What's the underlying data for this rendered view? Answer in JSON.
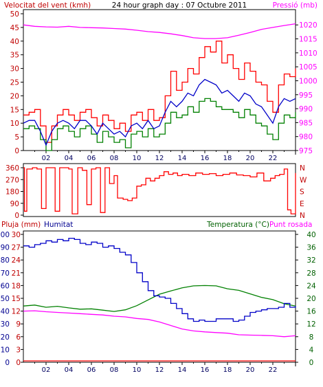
{
  "colors": {
    "wind": "#ff0000",
    "pressure": "#ff00ff",
    "humidity": "#0000c8",
    "temperature": "#008000",
    "dewpoint": "#ff00ff",
    "rain": "#ff0000",
    "label_red": "#c00000",
    "label_blue": "#000090",
    "label_green": "#006000",
    "axis": "#000000"
  },
  "chart_data": [
    {
      "type": "line",
      "title": "24 hour graph day : 07 Octubre 2011",
      "left_axis_label": "Velocitat del vent (kmh)",
      "right_axis_label": "Pressió (mb)",
      "left_ticks": [
        "0",
        "5",
        "10",
        "15",
        "20",
        "25",
        "30",
        "35",
        "40",
        "45",
        "50"
      ],
      "right_ticks": [
        "975",
        "980",
        "985",
        "990",
        "995",
        "1000",
        "1005",
        "1010",
        "1015",
        "1020"
      ],
      "x_ticks": [
        "02",
        "04",
        "06",
        "08",
        "10",
        "12",
        "14",
        "16",
        "18",
        "20",
        "22"
      ],
      "ylim_left": [
        0,
        50
      ],
      "ylim_right": [
        975,
        1024
      ],
      "x_range_hours": [
        0,
        24
      ],
      "series": [
        {
          "key": "gust",
          "x": [
            0,
            0.5,
            1,
            1.5,
            2,
            2.5,
            3,
            3.5,
            4,
            4.5,
            5,
            5.5,
            6,
            6.5,
            7,
            7.5,
            8,
            8.5,
            9,
            9.5,
            10,
            10.5,
            11,
            11.5,
            12,
            12.5,
            13,
            13.5,
            14,
            14.5,
            15,
            15.5,
            16,
            16.5,
            17,
            17.5,
            18,
            18.5,
            19,
            19.5,
            20,
            20.5,
            21,
            21.5,
            22,
            22.5,
            23,
            23.5,
            24
          ],
          "values": [
            13,
            14,
            15,
            9,
            3,
            9,
            13,
            15,
            13,
            11,
            14,
            15,
            12,
            9,
            13,
            11,
            8,
            10,
            7,
            13,
            14,
            11,
            15,
            11,
            12,
            20,
            29,
            22,
            25,
            30,
            28,
            34,
            38,
            36,
            40,
            32,
            35,
            30,
            26,
            32,
            29,
            25,
            24,
            18,
            14,
            24,
            28,
            27,
            30
          ]
        },
        {
          "key": "wind_avg",
          "x": [
            0,
            0.5,
            1,
            1.5,
            2,
            2.5,
            3,
            3.5,
            4,
            4.5,
            5,
            5.5,
            6,
            6.5,
            7,
            7.5,
            8,
            8.5,
            9,
            9.5,
            10,
            10.5,
            11,
            11.5,
            12,
            12.5,
            13,
            13.5,
            14,
            14.5,
            15,
            15.5,
            16,
            16.5,
            17,
            17.5,
            18,
            18.5,
            19,
            19.5,
            20,
            20.5,
            21,
            21.5,
            22,
            22.5,
            23,
            23.5,
            24
          ],
          "values": [
            10,
            11,
            11,
            7,
            2,
            7,
            10,
            11,
            10,
            8,
            11,
            11,
            9,
            6,
            10,
            8,
            6,
            7,
            5,
            9,
            10,
            8,
            11,
            8,
            9,
            14,
            18,
            16,
            18,
            21,
            20,
            24,
            26,
            25,
            24,
            21,
            22,
            20,
            18,
            21,
            20,
            17,
            16,
            13,
            10,
            16,
            19,
            18,
            19
          ]
        },
        {
          "key": "wind_min",
          "x": [
            0,
            0.5,
            1,
            1.5,
            2,
            2.5,
            3,
            3.5,
            4,
            4.5,
            5,
            5.5,
            6,
            6.5,
            7,
            7.5,
            8,
            8.5,
            9,
            9.5,
            10,
            10.5,
            11,
            11.5,
            12,
            12.5,
            13,
            13.5,
            14,
            14.5,
            15,
            15.5,
            16,
            16.5,
            17,
            17.5,
            18,
            18.5,
            19,
            19.5,
            20,
            20.5,
            21,
            21.5,
            22,
            22.5,
            23,
            23.5,
            24
          ],
          "values": [
            8,
            9,
            8,
            4,
            0,
            4,
            8,
            9,
            7,
            5,
            8,
            9,
            6,
            3,
            7,
            5,
            3,
            4,
            1,
            6,
            7,
            5,
            8,
            5,
            6,
            10,
            14,
            12,
            13,
            16,
            14,
            18,
            19,
            18,
            16,
            15,
            15,
            14,
            12,
            15,
            13,
            10,
            9,
            6,
            4,
            10,
            13,
            12,
            14
          ]
        },
        {
          "key": "pressure",
          "axis": "right",
          "x": [
            0,
            1,
            2,
            3,
            4,
            5,
            6,
            7,
            8,
            9,
            10,
            11,
            12,
            13,
            14,
            15,
            16,
            17,
            18,
            19,
            20,
            21,
            22,
            23,
            24
          ],
          "values": [
            1020,
            1019.5,
            1019.3,
            1019.2,
            1019.5,
            1019.1,
            1019,
            1018.9,
            1018.7,
            1018.5,
            1018.1,
            1017.6,
            1017.3,
            1016.8,
            1016.2,
            1015.4,
            1015.1,
            1015.1,
            1015.4,
            1016.3,
            1017.3,
            1018.4,
            1019.1,
            1019.8,
            1020.4
          ]
        }
      ]
    },
    {
      "type": "line",
      "left_ticks": [
        "0",
        "90",
        "180",
        "270",
        "360"
      ],
      "right_ticks": [
        "N",
        "W",
        "S",
        "E",
        "N"
      ],
      "ylim": [
        0,
        360
      ],
      "x_range_hours": [
        0,
        24
      ],
      "series": [
        {
          "key": "direction",
          "x": [
            0,
            0.1,
            0.3,
            0.8,
            1.2,
            1.6,
            2,
            2.4,
            2.8,
            3.2,
            3.6,
            4,
            4.3,
            4.8,
            5.2,
            5.6,
            6,
            6.4,
            6.8,
            7.2,
            7.6,
            8,
            8.3,
            8.8,
            9.2,
            9.6,
            10,
            10.4,
            10.8,
            11.2,
            11.6,
            12,
            12.4,
            12.8,
            13.2,
            13.6,
            14,
            14.6,
            15.2,
            15.8,
            16.4,
            17,
            17.6,
            18.2,
            18.8,
            19.4,
            20,
            20.6,
            21.2,
            21.8,
            22.2,
            22.6,
            23,
            23.3,
            23.6,
            24
          ],
          "values": [
            360,
            30,
            350,
            360,
            350,
            50,
            360,
            360,
            30,
            360,
            360,
            350,
            10,
            360,
            340,
            80,
            350,
            360,
            20,
            360,
            240,
            300,
            130,
            120,
            110,
            130,
            220,
            230,
            280,
            260,
            280,
            300,
            330,
            310,
            320,
            300,
            310,
            300,
            320,
            310,
            315,
            300,
            310,
            320,
            305,
            300,
            290,
            320,
            260,
            280,
            300,
            310,
            350,
            40,
            10,
            320
          ]
        }
      ]
    },
    {
      "type": "line",
      "left_axis_label": "Pluja (mm)",
      "left_axis_label2": "Humitat",
      "right_axis_label": "Temperatura (°C)",
      "right_axis_label2": "Punt rosada",
      "rain_ticks": [
        "0",
        "3",
        "6",
        "9",
        "12",
        "15",
        "18",
        "21",
        "24",
        "27",
        "30"
      ],
      "humidity_ticks": [
        "0",
        "10",
        "20",
        "30",
        "40",
        "50",
        "60",
        "70",
        "80",
        "90",
        "100"
      ],
      "right_ticks": [
        "0",
        "4",
        "8",
        "12",
        "16",
        "20",
        "24",
        "28",
        "32",
        "36",
        "40"
      ],
      "x_ticks": [
        "02",
        "04",
        "06",
        "08",
        "10",
        "12",
        "14",
        "16",
        "18",
        "20",
        "22"
      ],
      "ylim_humidity": [
        0,
        100
      ],
      "ylim_temperature": [
        0,
        40
      ],
      "x_range_hours": [
        0,
        24
      ],
      "series": [
        {
          "key": "humidity",
          "x": [
            0,
            0.5,
            1,
            1.5,
            2,
            2.5,
            3,
            3.5,
            4,
            4.5,
            5,
            5.5,
            6,
            6.5,
            7,
            7.5,
            8,
            8.5,
            9,
            9.5,
            10,
            10.5,
            11,
            11.5,
            12,
            12.5,
            13,
            13.5,
            14,
            14.5,
            15,
            15.5,
            16,
            16.5,
            17,
            17.5,
            18,
            18.5,
            19,
            19.5,
            20,
            20.5,
            21,
            21.5,
            22,
            22.5,
            23,
            23.5,
            24
          ],
          "values": [
            91,
            90,
            92,
            93,
            95,
            94,
            96,
            95,
            97,
            96,
            93,
            92,
            94,
            93,
            90,
            91,
            89,
            86,
            84,
            78,
            70,
            63,
            56,
            52,
            51,
            50,
            46,
            42,
            38,
            34,
            32,
            33,
            32,
            32,
            34,
            34,
            34,
            32,
            33,
            36,
            39,
            40,
            41,
            42,
            42,
            43,
            46,
            43,
            44
          ]
        },
        {
          "key": "temperature",
          "axis": "right",
          "x": [
            0,
            1,
            2,
            3,
            4,
            5,
            6,
            7,
            8,
            9,
            10,
            11,
            12,
            13,
            14,
            15,
            16,
            17,
            18,
            19,
            20,
            21,
            22,
            23,
            24
          ],
          "values": [
            17.6,
            17.9,
            17.2,
            17.5,
            17,
            16.6,
            16.7,
            16.3,
            15.9,
            16.4,
            17.7,
            19.5,
            21.3,
            22.3,
            23.3,
            23.9,
            24,
            23.9,
            23,
            22.5,
            21.4,
            20.3,
            19.6,
            18.3,
            17.6
          ]
        },
        {
          "key": "dewpoint",
          "axis": "right",
          "x": [
            0,
            1,
            2,
            3,
            4,
            5,
            6,
            7,
            8,
            9,
            10,
            11,
            12,
            13,
            14,
            15,
            16,
            17,
            18,
            19,
            20,
            21,
            22,
            23,
            24
          ],
          "values": [
            16,
            16.1,
            15.8,
            15.6,
            15.4,
            15.2,
            15,
            14.8,
            14.4,
            14.2,
            13.7,
            13.4,
            12.6,
            11.5,
            10.4,
            9.8,
            9.5,
            9.3,
            9.1,
            8.6,
            8.5,
            8.4,
            8.3,
            8,
            8.3
          ]
        },
        {
          "key": "rain",
          "x": [
            0,
            24
          ],
          "values": [
            0,
            0
          ]
        }
      ]
    }
  ]
}
